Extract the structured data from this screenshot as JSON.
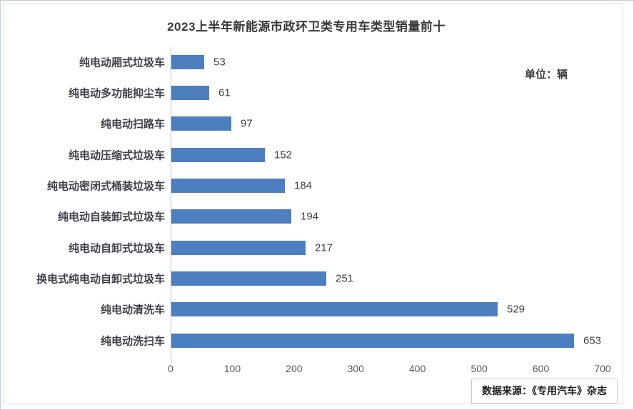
{
  "chart_data": {
    "type": "bar",
    "orientation": "horizontal",
    "title": "2023上半年新能源市政环卫类专用车类型销量前十",
    "unit_label": "单位：辆",
    "source": "数据来源：《专用汽车》杂志",
    "categories": [
      "纯电动厢式垃圾车",
      "纯电动多功能抑尘车",
      "纯电动扫路车",
      "纯电动压缩式垃圾车",
      "纯电动密闭式桶装垃圾车",
      "纯电动自装卸式垃圾车",
      "纯电动自卸式垃圾车",
      "换电式纯电动自卸式垃圾车",
      "纯电动清洗车",
      "纯电动洗扫车"
    ],
    "values": [
      53,
      61,
      97,
      152,
      184,
      194,
      217,
      251,
      529,
      653
    ],
    "xlim": [
      0,
      700
    ],
    "x_ticks": [
      0,
      100,
      200,
      300,
      400,
      500,
      600,
      700
    ],
    "bar_color": "#4d7ebf",
    "grid": false,
    "value_labels": true,
    "legend": "none"
  }
}
